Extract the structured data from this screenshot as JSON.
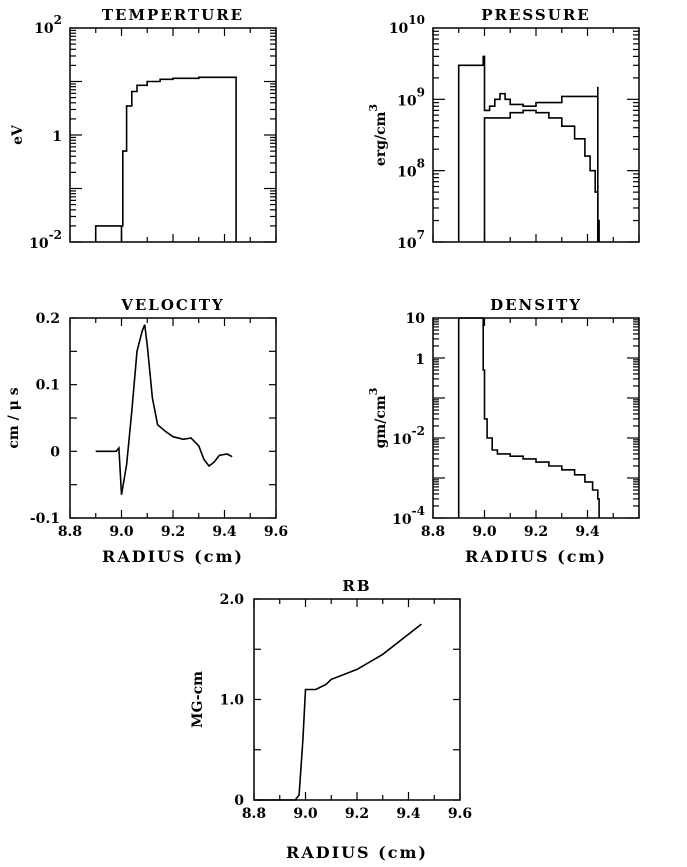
{
  "chart_data": [
    {
      "id": "temperature",
      "type": "line",
      "title": "TEMPERTURE",
      "ylabel": "eV",
      "xlabel": "",
      "xscale": "linear",
      "yscale": "log",
      "xlim": [
        8.8,
        9.6
      ],
      "ylim": [
        0.01,
        100
      ],
      "grid": false,
      "yticklabels": [
        {
          "value": 100,
          "base": "10",
          "exp": "2"
        },
        {
          "value": 1,
          "base": "1",
          "exp": ""
        },
        {
          "value": 0.01,
          "base": "10",
          "exp": "-2"
        }
      ],
      "series": [
        {
          "style": "step",
          "points": [
            [
              8.9,
              0.01
            ],
            [
              8.9,
              0.02
            ],
            [
              9.0,
              0.02
            ],
            [
              9.0,
              0.01
            ],
            [
              9.0,
              0.02
            ],
            [
              9.005,
              0.5
            ],
            [
              9.02,
              3.5
            ],
            [
              9.04,
              6.5
            ],
            [
              9.06,
              8.5
            ],
            [
              9.1,
              10
            ],
            [
              9.15,
              11
            ],
            [
              9.2,
              11.5
            ],
            [
              9.3,
              12
            ],
            [
              9.445,
              12
            ],
            [
              9.445,
              0.01
            ]
          ]
        }
      ]
    },
    {
      "id": "pressure",
      "type": "line",
      "title": "PRESSURE",
      "ylabel": "erg/cm3",
      "ylabel_base": "erg/cm",
      "ylabel_sup": "3",
      "xlabel": "",
      "xscale": "linear",
      "yscale": "log",
      "xlim": [
        8.8,
        9.6
      ],
      "ylim": [
        10000000,
        10000000000
      ],
      "grid": false,
      "yticklabels": [
        {
          "value": 10000000000,
          "base": "10",
          "exp": "10"
        },
        {
          "value": 1000000000,
          "base": "10",
          "exp": "9"
        },
        {
          "value": 100000000,
          "base": "10",
          "exp": "8"
        },
        {
          "value": 10000000,
          "base": "10",
          "exp": "7"
        }
      ],
      "series": [
        {
          "style": "step",
          "points": [
            [
              8.9,
              10000000
            ],
            [
              8.9,
              3000000000
            ],
            [
              8.995,
              3000000000
            ],
            [
              8.995,
              4000000000
            ],
            [
              9.0,
              4000000000
            ],
            [
              9.0,
              700000000
            ],
            [
              9.02,
              700000000
            ],
            [
              9.02,
              800000000
            ],
            [
              9.04,
              800000000
            ],
            [
              9.04,
              1000000000
            ],
            [
              9.06,
              1000000000
            ],
            [
              9.06,
              1200000000
            ],
            [
              9.08,
              1200000000
            ],
            [
              9.08,
              1000000000
            ],
            [
              9.1,
              1000000000
            ],
            [
              9.1,
              850000000
            ],
            [
              9.15,
              800000000
            ],
            [
              9.2,
              900000000
            ],
            [
              9.3,
              1100000000
            ],
            [
              9.44,
              1500000000
            ],
            [
              9.44,
              10000000
            ]
          ]
        },
        {
          "style": "step",
          "points": [
            [
              9.0,
              10000000
            ],
            [
              9.0,
              550000000
            ],
            [
              9.1,
              650000000
            ],
            [
              9.15,
              700000000
            ],
            [
              9.2,
              650000000
            ],
            [
              9.25,
              550000000
            ],
            [
              9.3,
              420000000
            ],
            [
              9.35,
              280000000
            ],
            [
              9.39,
              160000000
            ],
            [
              9.41,
              100000000
            ],
            [
              9.43,
              50000000
            ],
            [
              9.44,
              20000000
            ],
            [
              9.445,
              10000000
            ]
          ]
        }
      ]
    },
    {
      "id": "velocity",
      "type": "line",
      "title": "VELOCITY",
      "ylabel": "cm/µs",
      "ylabel_text": "cm / μ s",
      "xlabel": "RADIUS (cm)",
      "xscale": "linear",
      "yscale": "linear",
      "xlim": [
        8.8,
        9.6
      ],
      "ylim": [
        -0.1,
        0.2
      ],
      "grid": false,
      "xticklabels": [
        "8.8",
        "9.0",
        "9.2",
        "9.4",
        "9.6"
      ],
      "yticklabels": [
        "0.2",
        "0.1",
        "0",
        "-0.1"
      ],
      "series": [
        {
          "style": "line",
          "points": [
            [
              8.9,
              0
            ],
            [
              8.98,
              0
            ],
            [
              8.99,
              0.005
            ],
            [
              9.0,
              -0.065
            ],
            [
              9.02,
              -0.02
            ],
            [
              9.04,
              0.06
            ],
            [
              9.06,
              0.15
            ],
            [
              9.08,
              0.18
            ],
            [
              9.09,
              0.19
            ],
            [
              9.1,
              0.16
            ],
            [
              9.12,
              0.08
            ],
            [
              9.14,
              0.04
            ],
            [
              9.17,
              0.03
            ],
            [
              9.2,
              0.022
            ],
            [
              9.24,
              0.018
            ],
            [
              9.27,
              0.02
            ],
            [
              9.3,
              0.008
            ],
            [
              9.32,
              -0.012
            ],
            [
              9.34,
              -0.022
            ],
            [
              9.36,
              -0.016
            ],
            [
              9.38,
              -0.006
            ],
            [
              9.41,
              -0.004
            ],
            [
              9.43,
              -0.008
            ]
          ]
        }
      ]
    },
    {
      "id": "density",
      "type": "line",
      "title": "DENSITY",
      "ylabel": "gm/cm3",
      "ylabel_base": "gm/cm",
      "ylabel_sup": "3",
      "xlabel": "RADIUS (cm)",
      "xscale": "linear",
      "yscale": "log",
      "xlim": [
        8.8,
        9.6
      ],
      "ylim": [
        0.0001,
        10
      ],
      "grid": false,
      "xticklabels": [
        "8.8",
        "9.0",
        "9.2",
        "9.4"
      ],
      "yticklabels": [
        {
          "value": 10,
          "base": "10",
          "exp": ""
        },
        {
          "value": 1,
          "base": "1",
          "exp": ""
        },
        {
          "value": 0.01,
          "base": "10",
          "exp": "-2"
        },
        {
          "value": 0.0001,
          "base": "10",
          "exp": "-4"
        }
      ],
      "series": [
        {
          "style": "step",
          "points": [
            [
              8.9,
              0.0001
            ],
            [
              8.9,
              10
            ],
            [
              8.995,
              10
            ],
            [
              8.995,
              0.5
            ],
            [
              9.0,
              0.03
            ],
            [
              9.01,
              0.01
            ],
            [
              9.03,
              0.005
            ],
            [
              9.05,
              0.004
            ],
            [
              9.1,
              0.0035
            ],
            [
              9.15,
              0.003
            ],
            [
              9.2,
              0.0025
            ],
            [
              9.25,
              0.002
            ],
            [
              9.3,
              0.0016
            ],
            [
              9.35,
              0.0012
            ],
            [
              9.39,
              0.0008
            ],
            [
              9.42,
              0.0005
            ],
            [
              9.44,
              0.0003
            ],
            [
              9.445,
              0.0001
            ]
          ]
        }
      ]
    },
    {
      "id": "rb",
      "type": "line",
      "title": "RB",
      "ylabel": "MG-cm",
      "xlabel": "RADIUS (cm)",
      "xscale": "linear",
      "yscale": "linear",
      "xlim": [
        8.8,
        9.6
      ],
      "ylim": [
        0,
        2.0
      ],
      "grid": false,
      "xticklabels": [
        "8.8",
        "9.0",
        "9.2",
        "9.4",
        "9.6"
      ],
      "yticklabels": [
        "2.0",
        "1.0",
        "0"
      ],
      "series": [
        {
          "style": "line",
          "points": [
            [
              8.8,
              0
            ],
            [
              8.96,
              0
            ],
            [
              8.975,
              0.05
            ],
            [
              8.99,
              0.6
            ],
            [
              9.0,
              1.1
            ],
            [
              9.04,
              1.1
            ],
            [
              9.08,
              1.15
            ],
            [
              9.1,
              1.2
            ],
            [
              9.2,
              1.3
            ],
            [
              9.3,
              1.45
            ],
            [
              9.4,
              1.65
            ],
            [
              9.45,
              1.75
            ]
          ]
        }
      ]
    }
  ]
}
